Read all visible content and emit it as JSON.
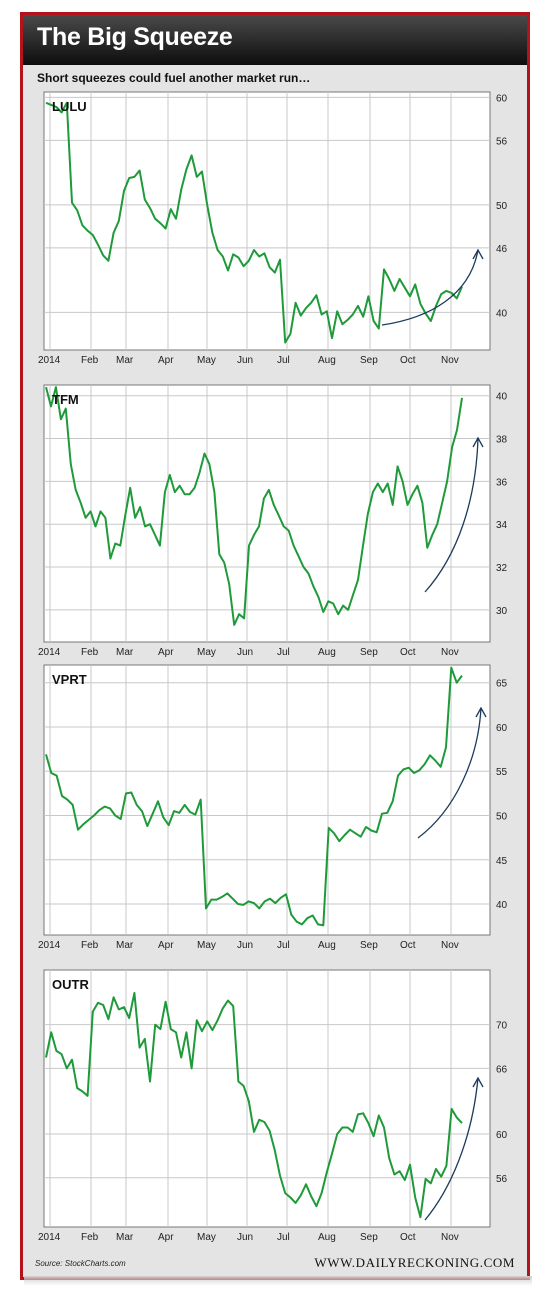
{
  "title": "The Big Squeeze",
  "subtitle": "Short squeezes could fuel another market run…",
  "source": "Source: StockCharts.com",
  "brand": "WWW.DAILYRECKONING.COM",
  "colors": {
    "line": "#1f9a3a",
    "arrow": "#1c3a5c",
    "frame": "#b3131b",
    "grid": "#c8c8c8"
  },
  "chart_data": [
    {
      "type": "line",
      "title": "LULU",
      "x_ticks": [
        "2014",
        "Feb",
        "Mar",
        "Apr",
        "May",
        "Jun",
        "Jul",
        "Aug",
        "Sep",
        "Oct",
        "Nov"
      ],
      "y_ticks": [
        40,
        46,
        50,
        56,
        60
      ],
      "ylim": [
        36.5,
        60.5
      ],
      "grid": true,
      "series": [
        {
          "values": [
            59.5,
            59.3,
            59.1,
            58.6,
            59.5,
            50.2,
            49.5,
            48.1,
            47.6,
            47.2,
            46.3,
            45.3,
            44.8,
            47.4,
            48.5,
            51.3,
            52.5,
            52.6,
            53.2,
            50.5,
            49.7,
            48.7,
            48.3,
            47.8,
            49.6,
            48.7,
            51.4,
            53.3,
            54.6,
            52.6,
            53.1,
            50.0,
            47.4,
            45.8,
            45.2,
            43.9,
            45.4,
            45.1,
            44.3,
            44.8,
            45.8,
            45.2,
            45.5,
            44.2,
            43.7,
            44.9,
            37.2,
            38.0,
            40.9,
            39.7,
            40.4,
            40.9,
            41.6,
            39.8,
            40.1,
            37.6,
            40.1,
            38.9,
            39.3,
            39.8,
            40.6,
            39.6,
            41.5,
            39.2,
            38.5,
            44.0,
            43.1,
            42.0,
            43.1,
            42.3,
            41.5,
            42.6,
            40.8,
            39.9,
            39.2,
            40.6,
            41.7,
            42.0,
            41.8,
            41.3,
            42.4
          ]
        }
      ],
      "annotation": "upward arrow (squeeze)"
    },
    {
      "type": "line",
      "title": "TFM",
      "x_ticks": [
        "2014",
        "Feb",
        "Mar",
        "Apr",
        "May",
        "Jun",
        "Jul",
        "Aug",
        "Sep",
        "Oct",
        "Nov"
      ],
      "y_ticks": [
        30,
        32,
        34,
        36,
        38,
        40
      ],
      "ylim": [
        28.5,
        40.5
      ],
      "grid": true,
      "series": [
        {
          "values": [
            40.4,
            39.5,
            40.4,
            38.9,
            39.4,
            36.8,
            35.6,
            35.0,
            34.3,
            34.6,
            33.9,
            34.6,
            34.3,
            32.4,
            33.1,
            33.0,
            34.4,
            35.7,
            34.3,
            34.8,
            33.9,
            34.0,
            33.5,
            33.0,
            35.5,
            36.3,
            35.5,
            35.8,
            35.4,
            35.4,
            35.7,
            36.4,
            37.3,
            36.8,
            35.5,
            32.6,
            32.2,
            31.2,
            29.3,
            29.8,
            29.6,
            33.0,
            33.5,
            33.9,
            35.2,
            35.6,
            34.9,
            34.4,
            33.9,
            33.7,
            33.0,
            32.5,
            32.0,
            31.7,
            31.1,
            30.6,
            29.9,
            30.4,
            30.3,
            29.8,
            30.2,
            30.0,
            30.7,
            31.4,
            33.0,
            34.5,
            35.5,
            35.9,
            35.5,
            35.9,
            34.9,
            36.7,
            36.0,
            34.9,
            35.4,
            35.8,
            35.0,
            32.9,
            33.5,
            34.0,
            35.0,
            36.0,
            37.6,
            38.4,
            39.9
          ]
        }
      ],
      "annotation": "upward arrow (squeeze)"
    },
    {
      "type": "line",
      "title": "VPRT",
      "x_ticks": [
        "2014",
        "Feb",
        "Mar",
        "Apr",
        "May",
        "Jun",
        "Jul",
        "Aug",
        "Sep",
        "Oct",
        "Nov"
      ],
      "y_ticks": [
        40,
        45,
        50,
        55,
        60,
        65
      ],
      "ylim": [
        36.5,
        67
      ],
      "grid": true,
      "series": [
        {
          "values": [
            56.9,
            54.8,
            54.5,
            52.2,
            51.8,
            51.2,
            48.4,
            49.0,
            49.5,
            50.0,
            50.6,
            51.0,
            50.8,
            50.0,
            49.6,
            52.5,
            52.6,
            51.2,
            50.5,
            48.8,
            50.2,
            51.6,
            49.8,
            48.9,
            50.5,
            50.3,
            51.2,
            50.4,
            50.1,
            51.8,
            39.5,
            40.5,
            40.5,
            40.8,
            41.2,
            40.6,
            40.0,
            39.9,
            40.3,
            40.1,
            39.5,
            40.3,
            40.6,
            40.1,
            40.7,
            41.1,
            38.8,
            38.0,
            37.7,
            38.4,
            38.7,
            37.7,
            37.6,
            48.6,
            48.0,
            47.1,
            47.8,
            48.4,
            48.0,
            47.6,
            48.7,
            48.3,
            48.1,
            50.2,
            50.3,
            51.6,
            54.5,
            55.2,
            55.4,
            54.8,
            55.1,
            55.8,
            56.8,
            56.2,
            55.5,
            57.7,
            66.7,
            65.0,
            65.8
          ]
        }
      ],
      "annotation": "upward arrow (squeeze)"
    },
    {
      "type": "line",
      "title": "OUTR",
      "x_ticks": [
        "2014",
        "Feb",
        "Mar",
        "Apr",
        "May",
        "Jun",
        "Jul",
        "Aug",
        "Sep",
        "Oct",
        "Nov"
      ],
      "y_ticks": [
        56,
        60,
        66,
        70
      ],
      "ylim": [
        51.5,
        75
      ],
      "grid": true,
      "series": [
        {
          "values": [
            67.0,
            69.3,
            67.6,
            67.3,
            66.0,
            66.8,
            64.2,
            63.9,
            63.5,
            71.2,
            72.0,
            71.8,
            70.5,
            72.5,
            71.4,
            71.6,
            70.6,
            72.9,
            67.9,
            68.7,
            64.8,
            70.0,
            69.6,
            72.1,
            69.6,
            69.3,
            67.0,
            69.3,
            66.0,
            70.4,
            69.4,
            70.3,
            69.5,
            70.4,
            71.5,
            72.2,
            71.7,
            64.8,
            64.4,
            63.0,
            60.2,
            61.3,
            61.1,
            60.3,
            58.5,
            56.2,
            54.6,
            54.2,
            53.7,
            54.4,
            55.4,
            54.3,
            53.4,
            54.6,
            56.5,
            58.2,
            60.0,
            60.6,
            60.6,
            60.2,
            61.8,
            61.9,
            61.0,
            59.8,
            61.7,
            60.6,
            57.8,
            56.3,
            56.6,
            55.8,
            57.2,
            54.2,
            52.4,
            55.9,
            55.5,
            56.8,
            56.1,
            57.1,
            62.3,
            61.5,
            61.0
          ]
        }
      ],
      "annotation": "upward arrow (squeeze)"
    }
  ]
}
